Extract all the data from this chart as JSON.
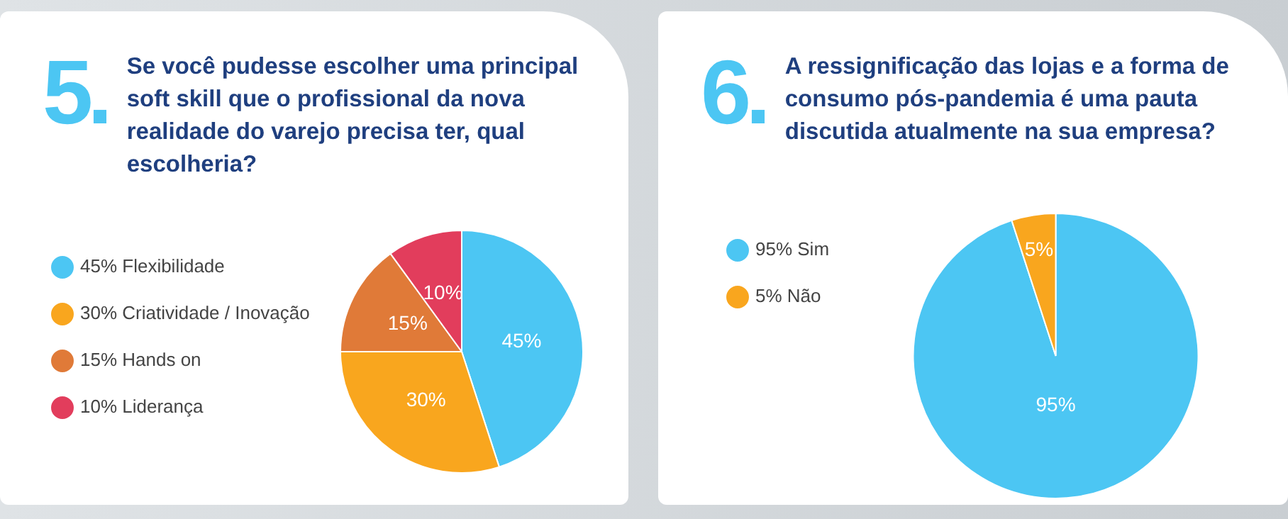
{
  "chart_data": [
    {
      "type": "pie",
      "annotations": [
        "5."
      ],
      "title": "Se você pudesse escolher uma principal soft skill que o profissional da nova realidade do varejo precisa ter, qual escolheria?",
      "categories": [
        "45% Flexibilidade",
        "30% Criatividade / Inovação",
        "15% Hands on",
        "10% Liderança"
      ],
      "values": [
        45,
        30,
        15,
        10
      ],
      "colors": [
        "#4cc6f3",
        "#f9a61e",
        "#e07a38",
        "#e23d5c"
      ],
      "value_labels": [
        "45%",
        "30%",
        "15%",
        "10%"
      ],
      "legend": "left"
    },
    {
      "type": "pie",
      "annotations": [
        "6."
      ],
      "title": "A ressignificação das lojas e a forma de consumo pós-pandemia é uma pauta discutida atualmente na sua empresa?",
      "categories": [
        "95% Sim",
        "5% Não"
      ],
      "values": [
        95,
        5
      ],
      "colors": [
        "#4cc6f3",
        "#f9a61e"
      ],
      "value_labels": [
        "95%",
        "5%"
      ],
      "legend": "left"
    }
  ]
}
